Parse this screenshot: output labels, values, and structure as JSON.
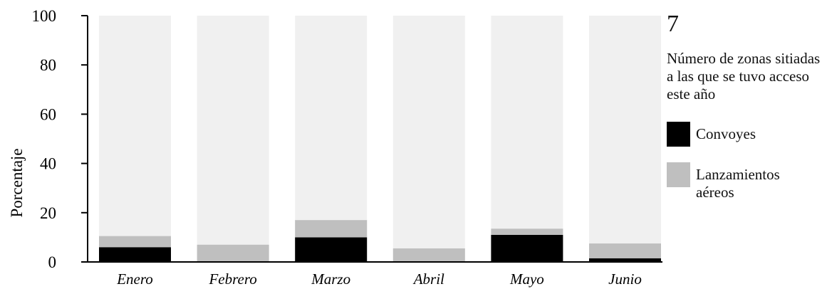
{
  "chart_data": {
    "type": "bar",
    "stacked": true,
    "categories": [
      "Enero",
      "Febrero",
      "Marzo",
      "Abril",
      "Mayo",
      "Junio"
    ],
    "series": [
      {
        "name": "Convoyes",
        "color": "#000000",
        "values": [
          6,
          0,
          10,
          0,
          11,
          1.5
        ]
      },
      {
        "name": "Lanzamientos aéreos",
        "color": "#bfbfbf",
        "values": [
          4.5,
          7,
          7,
          5.5,
          2.5,
          6
        ]
      }
    ],
    "background_bar": {
      "value": 100,
      "color": "#f0f0f0"
    },
    "ylabel": "Porcentaje",
    "ylim": [
      0,
      100
    ],
    "yticks": [
      0,
      20,
      40,
      60,
      80,
      100
    ],
    "grid": false,
    "legend_position": "right"
  },
  "side_panel": {
    "big_number": "7",
    "caption": "Número de zonas sitiadas a las que se tuvo acceso este año"
  }
}
